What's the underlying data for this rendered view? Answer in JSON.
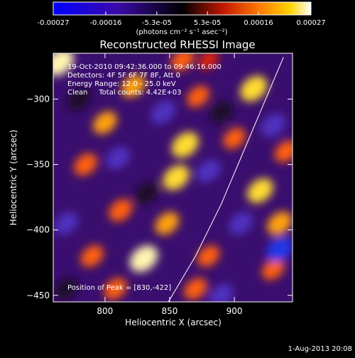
{
  "colorbar": {
    "tick_labels": [
      "-0.00027",
      "-0.00016",
      "-5.3e-05",
      "5.3e-05",
      "0.00016",
      "0.00027"
    ],
    "unit_label": "(photons cm⁻² s⁻¹ asec⁻²)",
    "range": [
      -0.00027,
      0.00027
    ]
  },
  "chart_data": {
    "type": "heatmap",
    "title": "Reconstructed RHESSI Image",
    "xlabel": "Heliocentric X (arcsec)",
    "ylabel": "Heliocentric Y (arcsec)",
    "xlim": [
      760,
      945
    ],
    "ylim": [
      -455,
      -265
    ],
    "x_ticks": [
      800,
      850,
      900
    ],
    "y_ticks": [
      -300,
      -350,
      -400,
      -450
    ],
    "annotations": [
      "19-Oct-2010 09:42:36.000 to 09:46:16.000",
      "Detectors: 4F 5F 6F 7F 8F, Att 0",
      "Energy Range: 12.0 - 25.0 keV",
      "Clean     Total counts: 4.42E+03"
    ],
    "peak_label": "Position of Peak = [830,-422]",
    "peak_position": [
      830,
      -422
    ],
    "limb_curve": [
      [
        849,
        -455
      ],
      [
        870,
        -420
      ],
      [
        890,
        -380
      ],
      [
        905,
        -345
      ],
      [
        920,
        -310
      ],
      [
        938,
        -268
      ]
    ],
    "blobs": [
      {
        "x": 765,
        "y": -272,
        "value": 1.0
      },
      {
        "x": 822,
        "y": -290,
        "value": 0.6
      },
      {
        "x": 800,
        "y": -318,
        "value": 0.6
      },
      {
        "x": 785,
        "y": -350,
        "value": 0.55
      },
      {
        "x": 812,
        "y": -385,
        "value": 0.55
      },
      {
        "x": 790,
        "y": -420,
        "value": 0.5
      },
      {
        "x": 830,
        "y": -422,
        "value": 1.0
      },
      {
        "x": 808,
        "y": -445,
        "value": 0.5
      },
      {
        "x": 862,
        "y": -335,
        "value": 0.9
      },
      {
        "x": 855,
        "y": -360,
        "value": 0.85
      },
      {
        "x": 848,
        "y": -395,
        "value": 0.6
      },
      {
        "x": 872,
        "y": -298,
        "value": 0.45
      },
      {
        "x": 860,
        "y": -270,
        "value": 0.5
      },
      {
        "x": 915,
        "y": -292,
        "value": 0.9
      },
      {
        "x": 900,
        "y": -330,
        "value": 0.45
      },
      {
        "x": 920,
        "y": -370,
        "value": 0.8
      },
      {
        "x": 935,
        "y": -395,
        "value": 0.7
      },
      {
        "x": 930,
        "y": -430,
        "value": 0.45
      },
      {
        "x": 880,
        "y": -420,
        "value": 0.45
      },
      {
        "x": 870,
        "y": -445,
        "value": 0.5
      },
      {
        "x": 940,
        "y": -340,
        "value": 0.5
      },
      {
        "x": 880,
        "y": -270,
        "value": 0.3
      },
      {
        "x": 770,
        "y": -395,
        "value": -0.6
      },
      {
        "x": 810,
        "y": -345,
        "value": -0.6
      },
      {
        "x": 845,
        "y": -310,
        "value": -0.7
      },
      {
        "x": 832,
        "y": -372,
        "value": -0.5
      },
      {
        "x": 880,
        "y": -355,
        "value": -0.6
      },
      {
        "x": 890,
        "y": -310,
        "value": -0.5
      },
      {
        "x": 905,
        "y": -395,
        "value": -0.6
      },
      {
        "x": 935,
        "y": -415,
        "value": -0.85
      },
      {
        "x": 930,
        "y": -320,
        "value": -0.7
      },
      {
        "x": 890,
        "y": -450,
        "value": -0.6
      },
      {
        "x": 780,
        "y": -300,
        "value": -0.5
      },
      {
        "x": 770,
        "y": -445,
        "value": -0.45
      }
    ]
  },
  "footer": {
    "timestamp": "1-Aug-2013 20:08"
  }
}
